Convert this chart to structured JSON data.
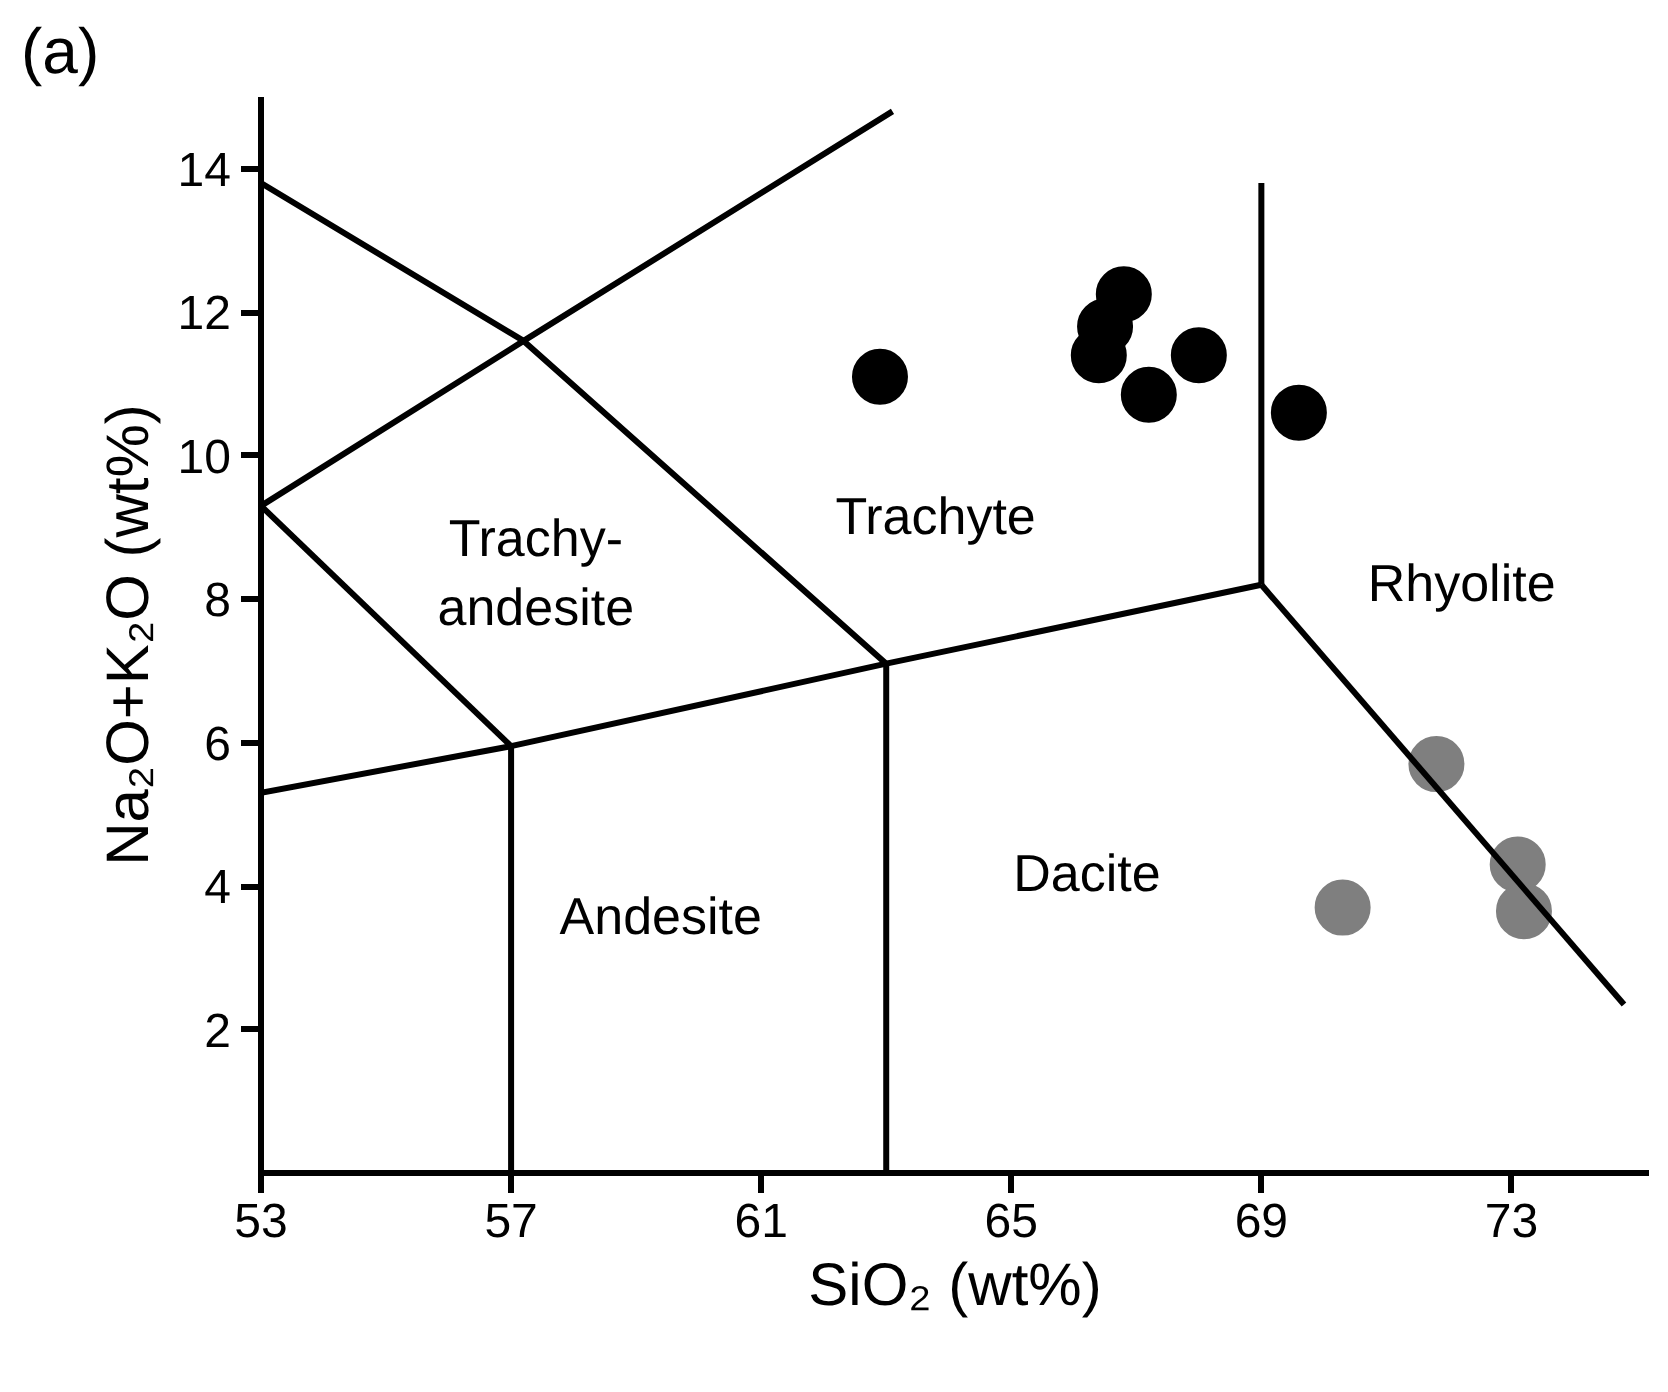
{
  "chart_data": {
    "type": "scatter",
    "xlabel": "SiO₂ (wt%)",
    "ylabel": "Na₂O+K₂O (wt%)",
    "xlim": [
      53,
      75.2
    ],
    "ylim": [
      0,
      15
    ],
    "xticks": [
      53,
      57,
      61,
      65,
      69,
      73
    ],
    "yticks": [
      2,
      4,
      6,
      8,
      10,
      12,
      14
    ],
    "grid": false,
    "marker": "circle",
    "series": [
      {
        "color": "#000000",
        "x": [
          62.9,
          66.8,
          66.5,
          66.4,
          67.2,
          68.0,
          69.6
        ],
        "values": [
          11.1,
          12.25,
          11.8,
          11.4,
          10.85,
          11.4,
          10.6
        ]
      },
      {
        "color": "#7f7f7f",
        "x": [
          71.8,
          70.3,
          73.1,
          73.2
        ],
        "values": [
          5.7,
          3.7,
          4.3,
          3.65
        ]
      },
      {
        "type": "line",
        "marker": "none",
        "color": "#000000",
        "x": [
          53,
          57.2,
          63
        ],
        "values": [
          13.8,
          11.6,
          7.1
        ]
      },
      {
        "type": "line",
        "marker": "none",
        "color": "#000000",
        "x": [
          53,
          57.2,
          63.1
        ],
        "values": [
          9.3,
          11.6,
          14.8
        ]
      },
      {
        "type": "line",
        "marker": "none",
        "color": "#000000",
        "x": [
          53,
          57
        ],
        "values": [
          9.3,
          5.95
        ]
      },
      {
        "type": "line",
        "marker": "none",
        "color": "#000000",
        "x": [
          53,
          57,
          63,
          69
        ],
        "values": [
          5.3,
          5.95,
          7.1,
          8.2
        ]
      },
      {
        "type": "line",
        "marker": "none",
        "color": "#000000",
        "x": [
          57,
          57
        ],
        "values": [
          5.95,
          0
        ]
      },
      {
        "type": "line",
        "marker": "none",
        "color": "#000000",
        "x": [
          63,
          63
        ],
        "values": [
          7.1,
          0
        ]
      },
      {
        "type": "line",
        "marker": "none",
        "color": "#000000",
        "x": [
          69,
          69
        ],
        "values": [
          8.2,
          13.8
        ]
      },
      {
        "type": "line",
        "marker": "none",
        "color": "#000000",
        "x": [
          69,
          74.8
        ],
        "values": [
          8.2,
          2.35
        ]
      }
    ],
    "annotations": [
      "(a)",
      "Trachy-\nandesite",
      "Trachyte",
      "Rhyolite",
      "Dacite",
      "Andesite"
    ]
  }
}
